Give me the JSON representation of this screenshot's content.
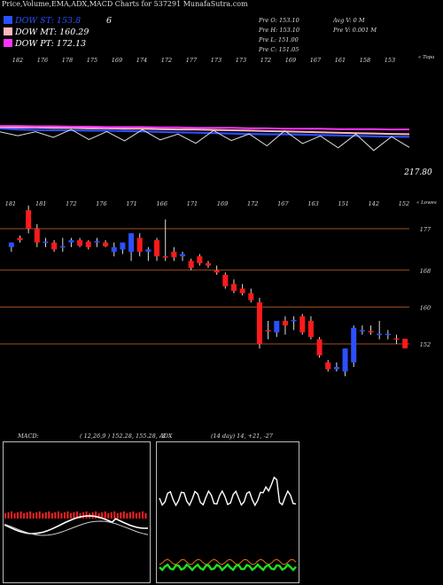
{
  "header": "Price,Volume,EMA,ADX,MACD Charts for 537291 MunafaSutra.com",
  "legend": [
    {
      "label": "DOW ST: 153.8",
      "color": "#2b50ff",
      "extra": "6"
    },
    {
      "label": "DOW MT: 160.29",
      "color": "#ffb8c0"
    },
    {
      "label": "DOW PT: 172.13",
      "color": "#ff33ff"
    }
  ],
  "ohlc": {
    "open": "Pre   O: 153.10",
    "high": "Pre   H: 153.10",
    "low": "Pre   L: 151.00",
    "close": "Pre   C: 151.05",
    "avg_vol": "Avg V: 0  M",
    "pre_vol": "Pre   V: 0.001 M"
  },
  "top_label": "« Topa",
  "lower_label": "« Lowes",
  "colors": {
    "up": "#2b50ff",
    "down": "#ff1a1a",
    "ema_st": "#2b50ff",
    "ema_mt": "#ffb8c0",
    "ema_pt": "#ff33ff"
  },
  "chart_data": [
    {
      "type": "line",
      "name": "ema-panel",
      "top_tick_labels": [
        "182",
        "176",
        "178",
        "175",
        "169",
        "174",
        "172",
        "177",
        "173",
        "173",
        "172",
        "169",
        "167",
        "161",
        "158",
        "153"
      ],
      "current_value_label": "217.80",
      "series": [
        {
          "name": "DOW ST",
          "values": [
            175,
            172,
            171,
            170,
            170,
            169,
            169,
            168,
            167,
            166,
            165,
            164,
            163,
            162,
            161,
            160,
            160,
            159,
            158,
            157,
            156,
            155,
            154,
            153.8
          ]
        },
        {
          "name": "DOW MT",
          "values": [
            178,
            177,
            177,
            176,
            176,
            175,
            175,
            174,
            174,
            173,
            172,
            172,
            171,
            170,
            169,
            168,
            167,
            166,
            165,
            164,
            163,
            162,
            161,
            160.29
          ]
        },
        {
          "name": "DOW PT",
          "values": [
            181,
            181,
            180,
            180,
            179,
            179,
            178,
            178,
            178,
            177,
            177,
            176,
            176,
            176,
            175,
            175,
            174,
            174,
            174,
            173,
            173,
            173,
            172,
            172.13
          ]
        }
      ]
    },
    {
      "type": "candlestick",
      "name": "price-panel",
      "tick_labels": [
        "181",
        "181",
        "172",
        "176",
        "171",
        "166",
        "171",
        "169",
        "172",
        "167",
        "163",
        "151",
        "142",
        "152"
      ],
      "y_axis_labels": [
        "177",
        "168",
        "160",
        "152"
      ],
      "candles": [
        {
          "o": 173,
          "h": 174,
          "l": 172,
          "c": 174,
          "dir": "up"
        },
        {
          "o": 175,
          "h": 175.5,
          "l": 174,
          "c": 174.5,
          "dir": "down"
        },
        {
          "o": 181,
          "h": 182,
          "l": 176,
          "c": 177,
          "dir": "down"
        },
        {
          "o": 177,
          "h": 178,
          "l": 173,
          "c": 174,
          "dir": "down"
        },
        {
          "o": 174,
          "h": 175,
          "l": 173,
          "c": 174.2,
          "dir": "up"
        },
        {
          "o": 174,
          "h": 174.5,
          "l": 172,
          "c": 172.5,
          "dir": "down"
        },
        {
          "o": 173,
          "h": 175,
          "l": 172,
          "c": 173.2,
          "dir": "up"
        },
        {
          "o": 174,
          "h": 175,
          "l": 173,
          "c": 174.5,
          "dir": "up"
        },
        {
          "o": 174.5,
          "h": 175,
          "l": 173,
          "c": 173.3,
          "dir": "down"
        },
        {
          "o": 173,
          "h": 174.5,
          "l": 172.5,
          "c": 174.2,
          "dir": "down"
        },
        {
          "o": 174,
          "h": 175,
          "l": 173,
          "c": 174.3,
          "dir": "up"
        },
        {
          "o": 174,
          "h": 174.5,
          "l": 173,
          "c": 173.2,
          "dir": "down"
        },
        {
          "o": 172,
          "h": 174,
          "l": 171,
          "c": 173,
          "dir": "up"
        },
        {
          "o": 172.5,
          "h": 174,
          "l": 171.5,
          "c": 174,
          "dir": "up"
        },
        {
          "o": 172,
          "h": 176,
          "l": 170,
          "c": 176,
          "dir": "up"
        },
        {
          "o": 175,
          "h": 176,
          "l": 171,
          "c": 172,
          "dir": "down"
        },
        {
          "o": 172,
          "h": 173,
          "l": 170,
          "c": 172.5,
          "dir": "up"
        },
        {
          "o": 174.5,
          "h": 175,
          "l": 170,
          "c": 171,
          "dir": "down"
        },
        {
          "o": 171,
          "h": 179,
          "l": 170,
          "c": 171,
          "dir": "down"
        },
        {
          "o": 172,
          "h": 173,
          "l": 170,
          "c": 170.8,
          "dir": "down"
        },
        {
          "o": 171,
          "h": 172,
          "l": 170,
          "c": 171.5,
          "dir": "up"
        },
        {
          "o": 170,
          "h": 170.5,
          "l": 168,
          "c": 168.5,
          "dir": "down"
        },
        {
          "o": 171,
          "h": 171.5,
          "l": 169,
          "c": 169.5,
          "dir": "down"
        },
        {
          "o": 169,
          "h": 170,
          "l": 168.5,
          "c": 169.5,
          "dir": "down"
        },
        {
          "o": 168,
          "h": 169,
          "l": 167,
          "c": 167.5,
          "dir": "down"
        },
        {
          "o": 167,
          "h": 167.5,
          "l": 164,
          "c": 164.5,
          "dir": "down"
        },
        {
          "o": 165,
          "h": 166,
          "l": 163,
          "c": 163.5,
          "dir": "down"
        },
        {
          "o": 164,
          "h": 165,
          "l": 162.5,
          "c": 163,
          "dir": "down"
        },
        {
          "o": 163,
          "h": 164,
          "l": 161,
          "c": 161.5,
          "dir": "down"
        },
        {
          "o": 161,
          "h": 162,
          "l": 151,
          "c": 152,
          "dir": "down"
        },
        {
          "o": 155,
          "h": 157,
          "l": 153,
          "c": 155,
          "dir": "down"
        },
        {
          "o": 154.5,
          "h": 157,
          "l": 153.5,
          "c": 157,
          "dir": "up"
        },
        {
          "o": 157,
          "h": 158,
          "l": 154,
          "c": 156,
          "dir": "down"
        },
        {
          "o": 157,
          "h": 158,
          "l": 155,
          "c": 157.2,
          "dir": "up"
        },
        {
          "o": 158,
          "h": 158.5,
          "l": 154,
          "c": 154.5,
          "dir": "down"
        },
        {
          "o": 157,
          "h": 158,
          "l": 153,
          "c": 153.5,
          "dir": "down"
        },
        {
          "o": 153,
          "h": 153.5,
          "l": 149,
          "c": 149.5,
          "dir": "down"
        },
        {
          "o": 148,
          "h": 148.5,
          "l": 146,
          "c": 146.5,
          "dir": "down"
        },
        {
          "o": 147,
          "h": 148,
          "l": 146,
          "c": 146.5,
          "dir": "up"
        },
        {
          "o": 146,
          "h": 151,
          "l": 145,
          "c": 151,
          "dir": "up"
        },
        {
          "o": 148,
          "h": 156,
          "l": 147,
          "c": 155.5,
          "dir": "up"
        },
        {
          "o": 155,
          "h": 156,
          "l": 154,
          "c": 155,
          "dir": "up"
        },
        {
          "o": 154.5,
          "h": 156,
          "l": 154,
          "c": 154.8,
          "dir": "down"
        },
        {
          "o": 154,
          "h": 157,
          "l": 153,
          "c": 154.2,
          "dir": "up"
        },
        {
          "o": 154,
          "h": 155,
          "l": 153,
          "c": 154.2,
          "dir": "up"
        },
        {
          "o": 153,
          "h": 154,
          "l": 152,
          "c": 153.2,
          "dir": "down"
        },
        {
          "o": 153.1,
          "h": 153.1,
          "l": 151,
          "c": 151.05,
          "dir": "down"
        }
      ]
    },
    {
      "type": "bar",
      "name": "macd-panel",
      "title": "MACD:",
      "values_label": "( 12,26,9 ) 152.28,  155.28, -3"
    },
    {
      "type": "line",
      "name": "adx-panel",
      "title": "ADX",
      "values_label": "(14  day) 14,  +21,  -27"
    }
  ]
}
